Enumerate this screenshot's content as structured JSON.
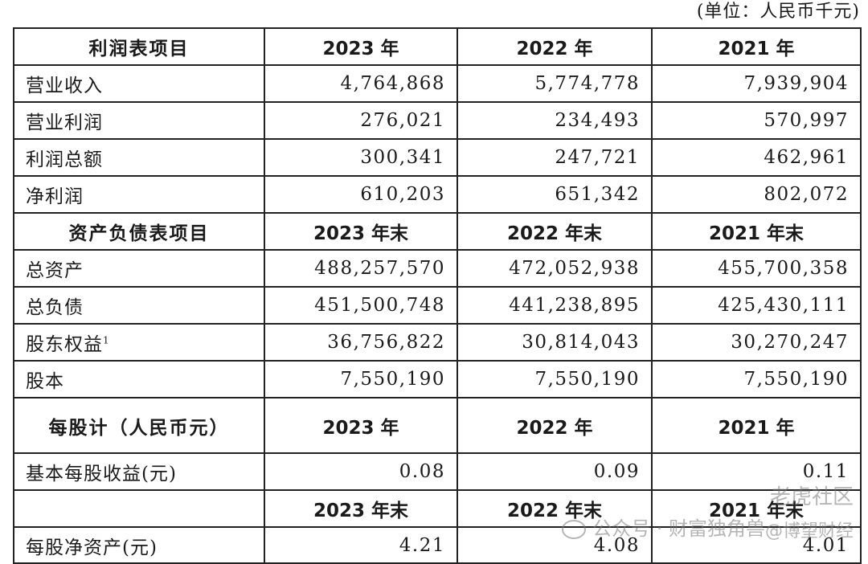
{
  "unit_note": "(单位：人民币千元)",
  "income_section": {
    "header": [
      "利润表项目",
      "2023 年",
      "2022 年",
      "2021 年"
    ],
    "rows": [
      {
        "label": "营业收入",
        "values": [
          "4,764,868",
          "5,774,778",
          "7,939,904"
        ]
      },
      {
        "label": "营业利润",
        "values": [
          "276,021",
          "234,493",
          "570,997"
        ]
      },
      {
        "label": "利润总额",
        "values": [
          "300,341",
          "247,721",
          "462,961"
        ]
      },
      {
        "label": "净利润",
        "values": [
          "610,203",
          "651,342",
          "802,072"
        ]
      }
    ]
  },
  "balance_section": {
    "header": [
      "资产负债表项目",
      "2023 年末",
      "2022 年末",
      "2021 年末"
    ],
    "rows": [
      {
        "label": "总资产",
        "values": [
          "488,257,570",
          "472,052,938",
          "455,700,358"
        ]
      },
      {
        "label": "总负债",
        "values": [
          "451,500,748",
          "441,238,895",
          "425,430,111"
        ]
      },
      {
        "label": "股东权益",
        "footnote": "1",
        "values": [
          "36,756,822",
          "30,814,043",
          "30,270,247"
        ]
      },
      {
        "label": "股本",
        "values": [
          "7,550,190",
          "7,550,190",
          "7,550,190"
        ]
      }
    ]
  },
  "per_share_section": {
    "header": [
      "每股计（人民币元）",
      "2023 年",
      "2022 年",
      "2021 年"
    ],
    "eps_row": {
      "label": "基本每股收益(元)",
      "values": [
        "0.08",
        "0.09",
        "0.11"
      ]
    },
    "subheader": [
      "",
      "2023 年末",
      "2022 年末",
      "2021 年末"
    ],
    "nav_row": {
      "label": "每股净资产(元)",
      "values": [
        "4.21",
        "4.08",
        "4.01"
      ]
    }
  },
  "watermark": {
    "top": "老虎社区",
    "main": "公众号 · 财富独角兽",
    "sub": "@博望财经"
  }
}
